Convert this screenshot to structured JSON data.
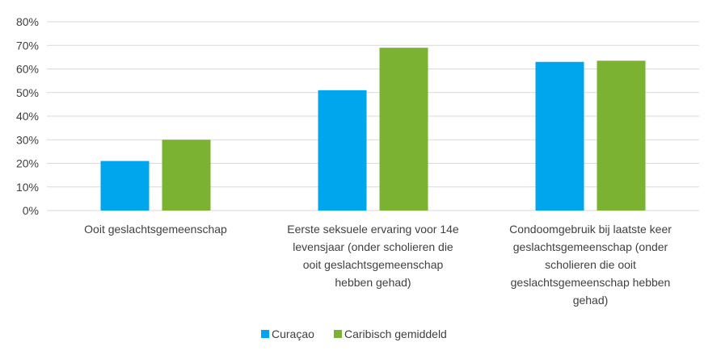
{
  "chart_data": {
    "type": "bar",
    "categories": [
      [
        "Ooit geslachtsgemeenschap"
      ],
      [
        "Eerste seksuele ervaring voor 14e",
        "levensjaar (onder scholieren die",
        "ooit geslachtsgemeenschap",
        "hebben gehad)"
      ],
      [
        "Condoomgebruik bij laatste keer",
        "geslachtsgemeenschap (onder",
        "scholieren die ooit",
        "geslachtsgemeenschap hebben",
        "gehad)"
      ]
    ],
    "series": [
      {
        "name": "Curaçao",
        "color": "#00A6ED",
        "values": [
          21,
          51,
          63
        ]
      },
      {
        "name": "Caribisch gemiddeld",
        "color": "#7CB232",
        "values": [
          30,
          69,
          63.5
        ]
      }
    ],
    "ylim": [
      0,
      80
    ],
    "yticks": [
      0,
      10,
      20,
      30,
      40,
      50,
      60,
      70,
      80
    ],
    "ytick_suffix": "%",
    "grid": true,
    "legend_position": "bottom"
  }
}
